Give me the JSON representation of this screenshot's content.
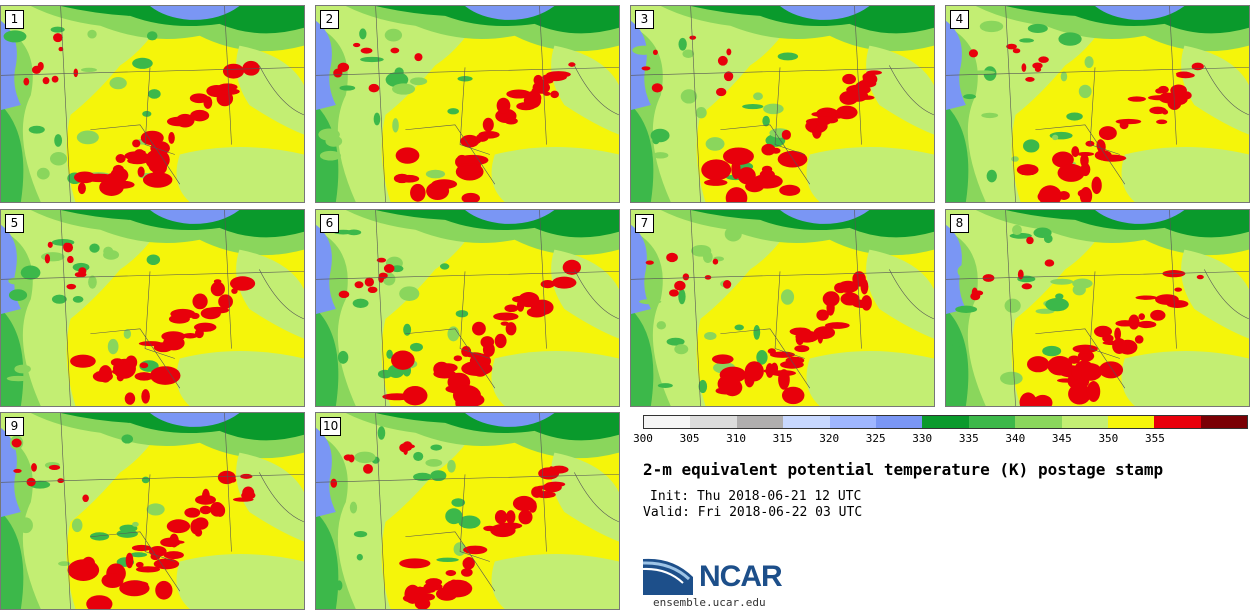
{
  "panels": [
    {
      "number": "1"
    },
    {
      "number": "2"
    },
    {
      "number": "3"
    },
    {
      "number": "4"
    },
    {
      "number": "5"
    },
    {
      "number": "6"
    },
    {
      "number": "7"
    },
    {
      "number": "8"
    },
    {
      "number": "9"
    },
    {
      "number": "10"
    }
  ],
  "colorbar": {
    "ticks": [
      "300",
      "305",
      "310",
      "315",
      "320",
      "325",
      "330",
      "335",
      "340",
      "345",
      "350",
      "355"
    ],
    "colors": [
      "#f5f5f5",
      "#dcdcdc",
      "#b0aeae",
      "#c8d8ff",
      "#9fb6ff",
      "#7a96f4",
      "#0a9a2c",
      "#3cb84a",
      "#8ad65c",
      "#c3ee73",
      "#f5f50a",
      "#e8000b",
      "#7a0005"
    ]
  },
  "title": "2-m equivalent potential temperature (K) postage stamp",
  "init": "Init: Thu 2018-06-21 12 UTC",
  "valid": "Valid: Fri 2018-06-22 03 UTC",
  "logo_text": "NCAR",
  "site": "ensemble.ucar.edu"
}
